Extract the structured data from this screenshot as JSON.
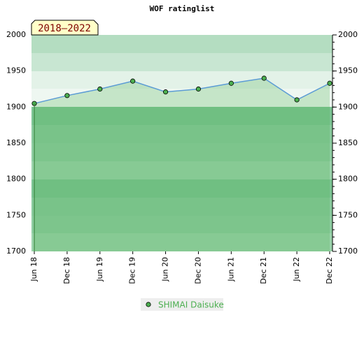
{
  "chart_data": {
    "type": "line",
    "title": "WOF ratinglist",
    "badge": "2018–2022",
    "categories": [
      "Jun 18",
      "Dec 18",
      "Jun 19",
      "Dec 19",
      "Jun 20",
      "Dec 20",
      "Jun 21",
      "Dec 21",
      "Jun 22",
      "Dec 22"
    ],
    "series": [
      {
        "name": "SHIMAI Daisuke",
        "color": "#5b9bd5",
        "marker_color": "#4caf50",
        "values": [
          1905,
          1916,
          1925,
          1936,
          1921,
          1925,
          1933,
          1940,
          1910,
          1933
        ]
      }
    ],
    "ylim": [
      1700,
      2000
    ],
    "yticks": [
      1700,
      1750,
      1800,
      1850,
      1900,
      1950,
      2000
    ],
    "grid": false
  }
}
